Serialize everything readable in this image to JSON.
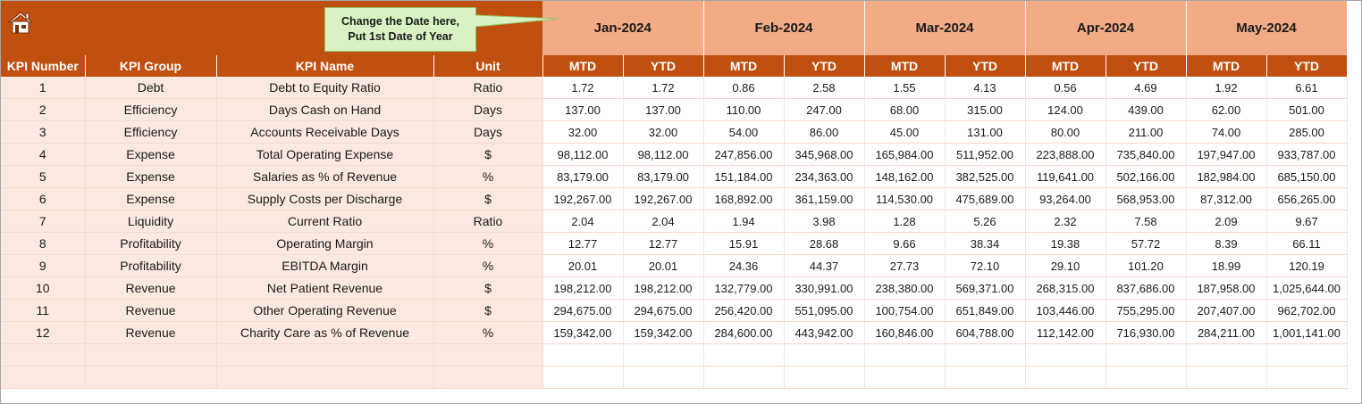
{
  "callout": {
    "line1": "Change the Date here,",
    "line2": "Put 1st Date of Year"
  },
  "months": [
    "Jan-2024",
    "Feb-2024",
    "Mar-2024",
    "Apr-2024",
    "May-2024"
  ],
  "columns": {
    "kpi_number": "KPI Number",
    "kpi_group": "KPI Group",
    "kpi_name": "KPI Name",
    "unit": "Unit",
    "mtd": "MTD",
    "ytd": "YTD"
  },
  "rows": [
    {
      "num": "1",
      "group": "Debt",
      "name": "Debt to Equity Ratio",
      "unit": "Ratio",
      "values": [
        "1.72",
        "1.72",
        "0.86",
        "2.58",
        "1.55",
        "4.13",
        "0.56",
        "4.69",
        "1.92",
        "6.61"
      ]
    },
    {
      "num": "2",
      "group": "Efficiency",
      "name": "Days Cash on Hand",
      "unit": "Days",
      "values": [
        "137.00",
        "137.00",
        "110.00",
        "247.00",
        "68.00",
        "315.00",
        "124.00",
        "439.00",
        "62.00",
        "501.00"
      ]
    },
    {
      "num": "3",
      "group": "Efficiency",
      "name": "Accounts Receivable Days",
      "unit": "Days",
      "values": [
        "32.00",
        "32.00",
        "54.00",
        "86.00",
        "45.00",
        "131.00",
        "80.00",
        "211.00",
        "74.00",
        "285.00"
      ]
    },
    {
      "num": "4",
      "group": "Expense",
      "name": "Total Operating Expense",
      "unit": "$",
      "values": [
        "98,112.00",
        "98,112.00",
        "247,856.00",
        "345,968.00",
        "165,984.00",
        "511,952.00",
        "223,888.00",
        "735,840.00",
        "197,947.00",
        "933,787.00"
      ]
    },
    {
      "num": "5",
      "group": "Expense",
      "name": "Salaries as % of Revenue",
      "unit": "%",
      "values": [
        "83,179.00",
        "83,179.00",
        "151,184.00",
        "234,363.00",
        "148,162.00",
        "382,525.00",
        "119,641.00",
        "502,166.00",
        "182,984.00",
        "685,150.00"
      ]
    },
    {
      "num": "6",
      "group": "Expense",
      "name": "Supply Costs per Discharge",
      "unit": "$",
      "values": [
        "192,267.00",
        "192,267.00",
        "168,892.00",
        "361,159.00",
        "114,530.00",
        "475,689.00",
        "93,264.00",
        "568,953.00",
        "87,312.00",
        "656,265.00"
      ]
    },
    {
      "num": "7",
      "group": "Liquidity",
      "name": "Current Ratio",
      "unit": "Ratio",
      "values": [
        "2.04",
        "2.04",
        "1.94",
        "3.98",
        "1.28",
        "5.26",
        "2.32",
        "7.58",
        "2.09",
        "9.67"
      ]
    },
    {
      "num": "8",
      "group": "Profitability",
      "name": "Operating Margin",
      "unit": "%",
      "values": [
        "12.77",
        "12.77",
        "15.91",
        "28.68",
        "9.66",
        "38.34",
        "19.38",
        "57.72",
        "8.39",
        "66.11"
      ]
    },
    {
      "num": "9",
      "group": "Profitability",
      "name": "EBITDA Margin",
      "unit": "%",
      "values": [
        "20.01",
        "20.01",
        "24.36",
        "44.37",
        "27.73",
        "72.10",
        "29.10",
        "101.20",
        "18.99",
        "120.19"
      ]
    },
    {
      "num": "10",
      "group": "Revenue",
      "name": "Net Patient Revenue",
      "unit": "$",
      "values": [
        "198,212.00",
        "198,212.00",
        "132,779.00",
        "330,991.00",
        "238,380.00",
        "569,371.00",
        "268,315.00",
        "837,686.00",
        "187,958.00",
        "1,025,644.00"
      ]
    },
    {
      "num": "11",
      "group": "Revenue",
      "name": "Other Operating Revenue",
      "unit": "$",
      "values": [
        "294,675.00",
        "294,675.00",
        "256,420.00",
        "551,095.00",
        "100,754.00",
        "651,849.00",
        "103,446.00",
        "755,295.00",
        "207,407.00",
        "962,702.00"
      ]
    },
    {
      "num": "12",
      "group": "Revenue",
      "name": "Charity Care as % of Revenue",
      "unit": "%",
      "values": [
        "159,342.00",
        "159,342.00",
        "284,600.00",
        "443,942.00",
        "160,846.00",
        "604,788.00",
        "112,142.00",
        "716,930.00",
        "284,211.00",
        "1,001,141.00"
      ]
    }
  ],
  "icons": {
    "home": "home-icon"
  },
  "colors": {
    "header": "#c0500f",
    "month_band": "#f2ab85",
    "info_cells": "#fbe9e1",
    "callout": "#d9f2c4"
  }
}
